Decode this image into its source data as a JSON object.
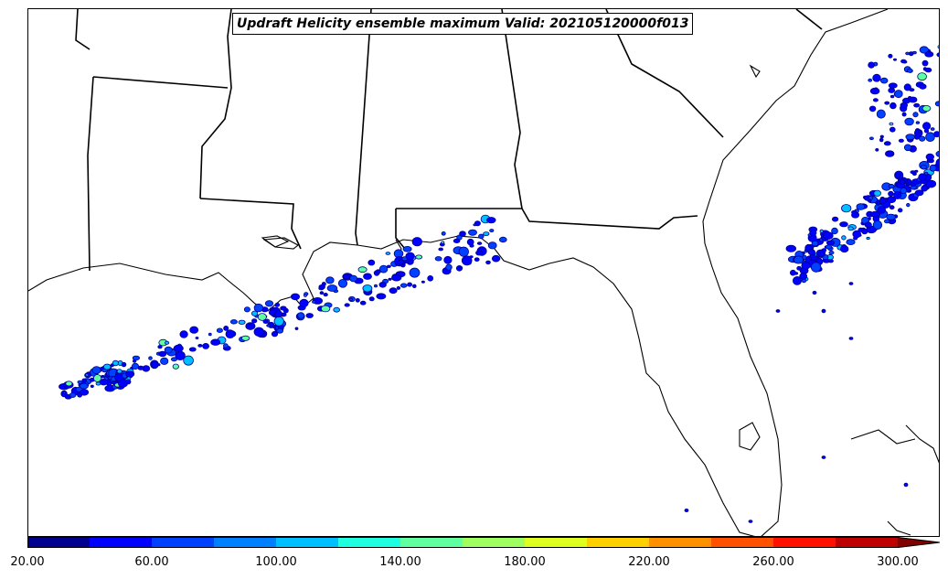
{
  "map": {
    "title": "Updraft Helicity ensemble maximum Valid: 202105120000f013",
    "field": "Updraft Helicity ensemble maximum",
    "valid_time": "202105120000f013",
    "region": "Southeast United States and northern Gulf of Mexico",
    "features": [
      "coastline",
      "state-borders",
      "lakes"
    ],
    "colors": {
      "outline": "#000000",
      "background": "#ffffff"
    }
  },
  "colorbar": {
    "extend": "max",
    "bins": [
      {
        "low": 20,
        "high": 40,
        "color": "#00008f"
      },
      {
        "low": 40,
        "high": 60,
        "color": "#0000ff"
      },
      {
        "low": 60,
        "high": 80,
        "color": "#0040ff"
      },
      {
        "low": 80,
        "high": 100,
        "color": "#0080ff"
      },
      {
        "low": 100,
        "high": 120,
        "color": "#00bfff"
      },
      {
        "low": 120,
        "high": 140,
        "color": "#20ffdf"
      },
      {
        "low": 140,
        "high": 160,
        "color": "#60ffa0"
      },
      {
        "low": 160,
        "high": 180,
        "color": "#a0ff60"
      },
      {
        "low": 180,
        "high": 200,
        "color": "#dfff20"
      },
      {
        "low": 200,
        "high": 220,
        "color": "#ffd000"
      },
      {
        "low": 220,
        "high": 240,
        "color": "#ff9000"
      },
      {
        "low": 240,
        "high": 260,
        "color": "#ff5000"
      },
      {
        "low": 260,
        "high": 280,
        "color": "#ff1000"
      },
      {
        "low": 280,
        "high": 300,
        "color": "#bf0000"
      }
    ],
    "extend_color": "#800000",
    "ticks": [
      "20.00",
      "60.00",
      "100.00",
      "140.00",
      "180.00",
      "220.00",
      "260.00",
      "300.00"
    ]
  }
}
